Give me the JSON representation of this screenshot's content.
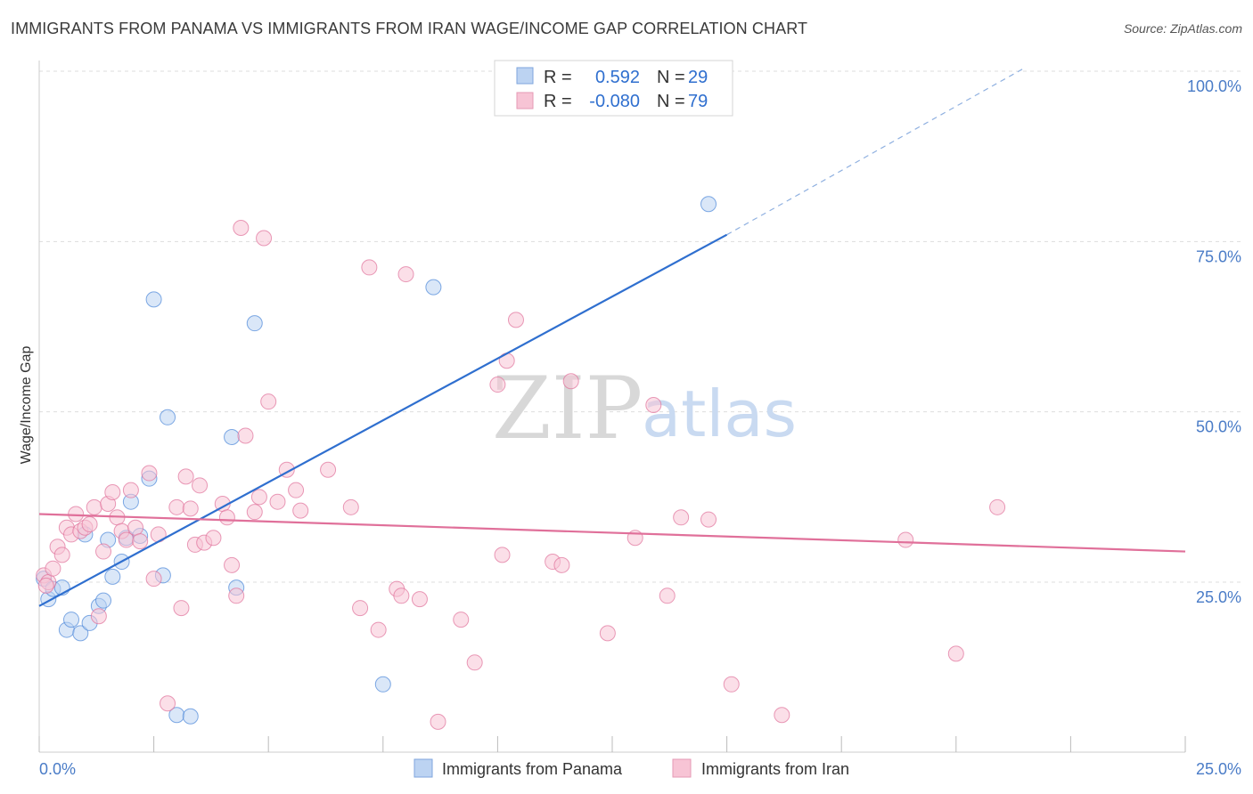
{
  "title": "IMMIGRANTS FROM PANAMA VS IMMIGRANTS FROM IRAN WAGE/INCOME GAP CORRELATION CHART",
  "source": "Source: ZipAtlas.com",
  "watermark": {
    "zip": "ZIP",
    "atlas": "atlas"
  },
  "colors": {
    "panama": "#4a86d8",
    "panama_fill": "#bcd3f2",
    "iran": "#e0709a",
    "iran_fill": "#f7c4d5",
    "tick_text": "#4a7cc7",
    "grid": "#dddddd"
  },
  "legend": {
    "rows": [
      {
        "r_label": "R =",
        "r_value": "0.592",
        "n_label": "N =",
        "n_value": "29"
      },
      {
        "r_label": "R =",
        "r_value": "-0.080",
        "n_label": "N =",
        "n_value": "79"
      }
    ]
  },
  "bottom_legend": [
    "Immigrants from Panama",
    "Immigrants from Iran"
  ],
  "chart_data": {
    "type": "scatter",
    "title": "IMMIGRANTS FROM PANAMA VS IMMIGRANTS FROM IRAN WAGE/INCOME GAP CORRELATION CHART",
    "xlabel": "",
    "ylabel": "Wage/Income Gap",
    "xlim": [
      0,
      25
    ],
    "ylim": [
      0,
      105
    ],
    "x_tick_labels": [
      "0.0%",
      "25.0%"
    ],
    "y_ticks": [
      25,
      50,
      75,
      100
    ],
    "y_tick_labels": [
      "25.0%",
      "50.0%",
      "75.0%",
      "100.0%"
    ],
    "grid": true,
    "legend_placement": "top-center",
    "series": [
      {
        "name": "Immigrants from Panama",
        "color": "#4a86d8",
        "points": [
          [
            0.1,
            25.5
          ],
          [
            0.2,
            22.5
          ],
          [
            0.3,
            24.0
          ],
          [
            0.5,
            24.2
          ],
          [
            0.6,
            18.0
          ],
          [
            0.7,
            19.5
          ],
          [
            0.9,
            17.5
          ],
          [
            1.0,
            32.0
          ],
          [
            1.1,
            19.0
          ],
          [
            1.3,
            21.5
          ],
          [
            1.4,
            22.3
          ],
          [
            1.5,
            31.2
          ],
          [
            1.6,
            25.8
          ],
          [
            1.8,
            28.0
          ],
          [
            1.9,
            31.5
          ],
          [
            2.0,
            36.8
          ],
          [
            2.2,
            31.8
          ],
          [
            2.4,
            40.2
          ],
          [
            2.5,
            66.5
          ],
          [
            2.7,
            26.0
          ],
          [
            2.8,
            49.2
          ],
          [
            3.0,
            5.5
          ],
          [
            3.3,
            5.3
          ],
          [
            4.2,
            46.3
          ],
          [
            4.3,
            24.2
          ],
          [
            4.7,
            63.0
          ],
          [
            7.5,
            10.0
          ],
          [
            8.6,
            68.3
          ],
          [
            14.6,
            80.5
          ]
        ],
        "trend": {
          "x": [
            0,
            15
          ],
          "y": [
            21.5,
            76.0
          ],
          "dashed_x": [
            15,
            21.5
          ],
          "dashed_y": [
            76.0,
            100.5
          ]
        }
      },
      {
        "name": "Immigrants from Iran",
        "color": "#e0709a",
        "points": [
          [
            0.1,
            26.0
          ],
          [
            0.2,
            25.0
          ],
          [
            0.3,
            27.0
          ],
          [
            0.4,
            30.2
          ],
          [
            0.5,
            29.0
          ],
          [
            0.6,
            33.0
          ],
          [
            0.7,
            32.0
          ],
          [
            0.8,
            35.0
          ],
          [
            0.9,
            32.5
          ],
          [
            1.0,
            33.0
          ],
          [
            1.1,
            33.5
          ],
          [
            1.2,
            36.0
          ],
          [
            1.3,
            20.0
          ],
          [
            1.4,
            29.5
          ],
          [
            1.5,
            36.5
          ],
          [
            1.6,
            38.2
          ],
          [
            1.7,
            34.5
          ],
          [
            1.8,
            32.5
          ],
          [
            1.9,
            31.2
          ],
          [
            2.0,
            38.5
          ],
          [
            2.1,
            33.0
          ],
          [
            2.2,
            31.0
          ],
          [
            2.4,
            41.0
          ],
          [
            2.5,
            25.5
          ],
          [
            2.6,
            32.0
          ],
          [
            2.8,
            7.2
          ],
          [
            3.0,
            36.0
          ],
          [
            3.1,
            21.2
          ],
          [
            3.2,
            40.5
          ],
          [
            3.3,
            35.8
          ],
          [
            3.4,
            30.5
          ],
          [
            3.5,
            39.2
          ],
          [
            3.6,
            30.8
          ],
          [
            3.8,
            31.5
          ],
          [
            4.0,
            36.5
          ],
          [
            4.1,
            34.5
          ],
          [
            4.2,
            27.5
          ],
          [
            4.3,
            23.0
          ],
          [
            4.4,
            77.0
          ],
          [
            4.5,
            46.5
          ],
          [
            4.7,
            35.3
          ],
          [
            4.8,
            37.5
          ],
          [
            4.9,
            75.5
          ],
          [
            5.0,
            51.5
          ],
          [
            5.2,
            36.8
          ],
          [
            5.4,
            41.5
          ],
          [
            5.6,
            38.5
          ],
          [
            5.7,
            35.5
          ],
          [
            6.3,
            41.5
          ],
          [
            6.8,
            36.0
          ],
          [
            7.0,
            21.2
          ],
          [
            7.2,
            71.2
          ],
          [
            7.4,
            18.0
          ],
          [
            7.8,
            24.0
          ],
          [
            7.9,
            23.0
          ],
          [
            8.0,
            70.2
          ],
          [
            8.3,
            22.5
          ],
          [
            8.7,
            4.5
          ],
          [
            9.2,
            19.5
          ],
          [
            9.5,
            13.2
          ],
          [
            10.0,
            54.0
          ],
          [
            10.1,
            29.0
          ],
          [
            10.2,
            57.5
          ],
          [
            10.4,
            63.5
          ],
          [
            11.2,
            28.0
          ],
          [
            11.4,
            27.5
          ],
          [
            11.6,
            54.5
          ],
          [
            12.4,
            17.5
          ],
          [
            13.0,
            31.5
          ],
          [
            13.4,
            51.0
          ],
          [
            13.7,
            23.0
          ],
          [
            14.0,
            34.5
          ],
          [
            14.6,
            34.2
          ],
          [
            15.1,
            10.0
          ],
          [
            16.2,
            5.5
          ],
          [
            18.9,
            31.2
          ],
          [
            20.0,
            14.5
          ],
          [
            20.9,
            36.0
          ],
          [
            0.15,
            24.5
          ]
        ],
        "trend": {
          "x": [
            0,
            25
          ],
          "y": [
            35.0,
            29.5
          ]
        }
      }
    ]
  }
}
